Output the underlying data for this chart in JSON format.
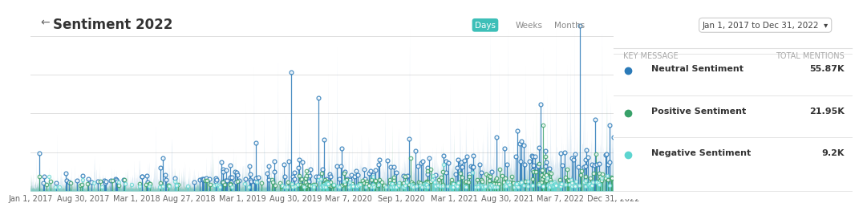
{
  "title": "Sentiment 2022",
  "date_range": "Jan 1, 2017 to Dec 31, 2022",
  "background_color": "#ffffff",
  "chart_bg_color": "#ffffff",
  "tab_days": "Days",
  "tab_weeks": "Weeks",
  "tab_months": "Months",
  "tab_active_color": "#3dbfb8",
  "tab_inactive_color": "#888888",
  "yticks": [
    0,
    150,
    300,
    450,
    600
  ],
  "ylim": [
    0,
    650
  ],
  "xtick_labels": [
    "Jan 1, 2017",
    "Aug 30, 2017",
    "Mar 1, 2018",
    "Aug 27, 2018",
    "Mar 1, 2019",
    "Aug 30, 2019",
    "Mar 7, 2020",
    "Sep 1, 2020",
    "Mar 1, 2021",
    "Aug 30, 2021",
    "Mar 7, 2022",
    "Dec 31, 2022"
  ],
  "neutral_color": "#2b7ab8",
  "positive_color": "#38a169",
  "negative_color": "#5dd5d0",
  "key_message_header": "KEY MESSAGE",
  "total_mentions_header": "TOTAL MENTIONS",
  "legend_items": [
    {
      "label": "Neutral Sentiment",
      "value": "55.87K",
      "color": "#2b7ab8"
    },
    {
      "label": "Positive Sentiment",
      "value": "21.95K",
      "color": "#38a169"
    },
    {
      "label": "Negative Sentiment",
      "value": "9.2K",
      "color": "#5dd5d0"
    }
  ],
  "grid_color": "#e0e0e0",
  "title_fontsize": 12,
  "axis_fontsize": 7,
  "header_fontsize": 7,
  "legend_fontsize": 8
}
